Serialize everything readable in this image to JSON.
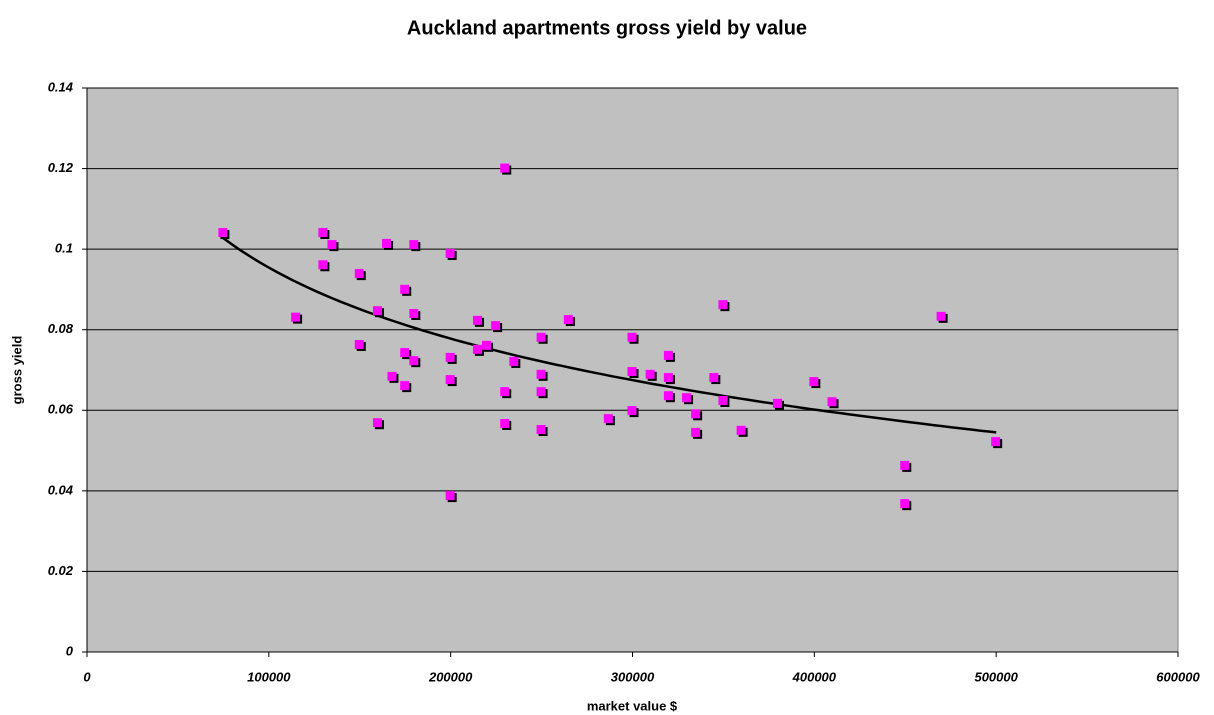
{
  "chart_data": {
    "type": "scatter",
    "title": "Auckland apartments gross yield by value",
    "x_label": "market value $",
    "y_label": "gross yield",
    "xlim": [
      0,
      600000
    ],
    "xticks": [
      0,
      100000,
      200000,
      300000,
      400000,
      500000,
      600000
    ],
    "ylim": [
      0,
      0.14
    ],
    "yticks": [
      0,
      0.02,
      0.04,
      0.06,
      0.08,
      0.1,
      0.12,
      0.14
    ],
    "grid": true,
    "trendline": "logarithmic",
    "series": [
      {
        "color": "#ff00ff",
        "x": [
          75000,
          115000,
          130000,
          135000,
          130000,
          150000,
          165000,
          180000,
          200000,
          175000,
          160000,
          180000,
          150000,
          175000,
          180000,
          168000,
          175000,
          160000,
          200000,
          200000,
          200000,
          215000,
          225000,
          215000,
          220000,
          235000,
          230000,
          230000,
          230000,
          250000,
          250000,
          250000,
          250000,
          265000,
          287000,
          300000,
          300000,
          300000,
          310000,
          320000,
          320000,
          320000,
          330000,
          335000,
          335000,
          345000,
          350000,
          350000,
          360000,
          380000,
          400000,
          410000,
          450000,
          450000,
          470000,
          500000
        ],
        "values": [
          0.104,
          0.083,
          0.104,
          0.101,
          0.096,
          0.0938,
          0.1013,
          0.101,
          0.0988,
          0.0899,
          0.0846,
          0.0839,
          0.0762,
          0.0742,
          0.0722,
          0.0683,
          0.066,
          0.0568,
          0.073,
          0.0675,
          0.0387,
          0.0822,
          0.0809,
          0.075,
          0.076,
          0.072,
          0.12,
          0.0645,
          0.0566,
          0.078,
          0.0688,
          0.0645,
          0.0551,
          0.0824,
          0.0578,
          0.078,
          0.0695,
          0.0598,
          0.0688,
          0.0735,
          0.068,
          0.0635,
          0.063,
          0.059,
          0.0544,
          0.068,
          0.0861,
          0.0623,
          0.0549,
          0.0616,
          0.067,
          0.062,
          0.0462,
          0.0367,
          0.0832,
          0.0521
        ]
      }
    ]
  }
}
